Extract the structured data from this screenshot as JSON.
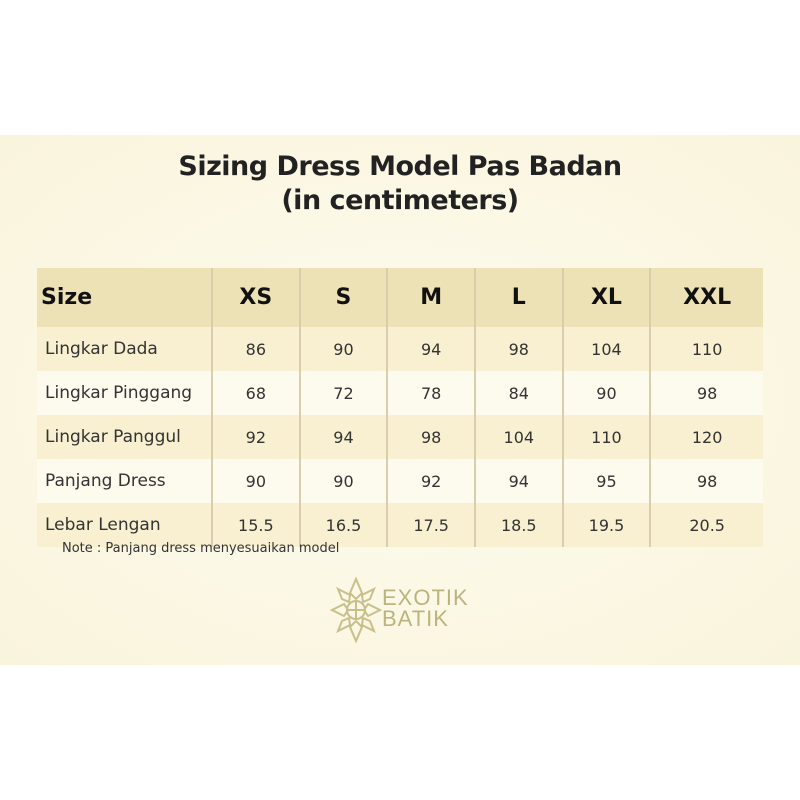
{
  "title_line1": "Sizing Dress Model Pas Badan",
  "title_line2": "(in centimeters)",
  "table": {
    "headers": [
      "Size",
      "XS",
      "S",
      "M",
      "L",
      "XL",
      "XXL"
    ],
    "rows": [
      [
        "Lingkar Dada",
        "86",
        "90",
        "94",
        "98",
        "104",
        "110"
      ],
      [
        "Lingkar Pinggang",
        "68",
        "72",
        "78",
        "84",
        "90",
        "98"
      ],
      [
        "Lingkar Panggul",
        "92",
        "94",
        "98",
        "104",
        "110",
        "120"
      ],
      [
        "Panjang Dress",
        "90",
        "90",
        "92",
        "94",
        "95",
        "98"
      ],
      [
        "Lebar Lengan",
        "15.5",
        "16.5",
        "17.5",
        "18.5",
        "19.5",
        "20.5"
      ]
    ]
  },
  "note": "Note : Panjang dress menyesuaikan model",
  "logo": {
    "line1": "EXOTIK",
    "line2": "BATIK",
    "color": "#bdb37e"
  }
}
